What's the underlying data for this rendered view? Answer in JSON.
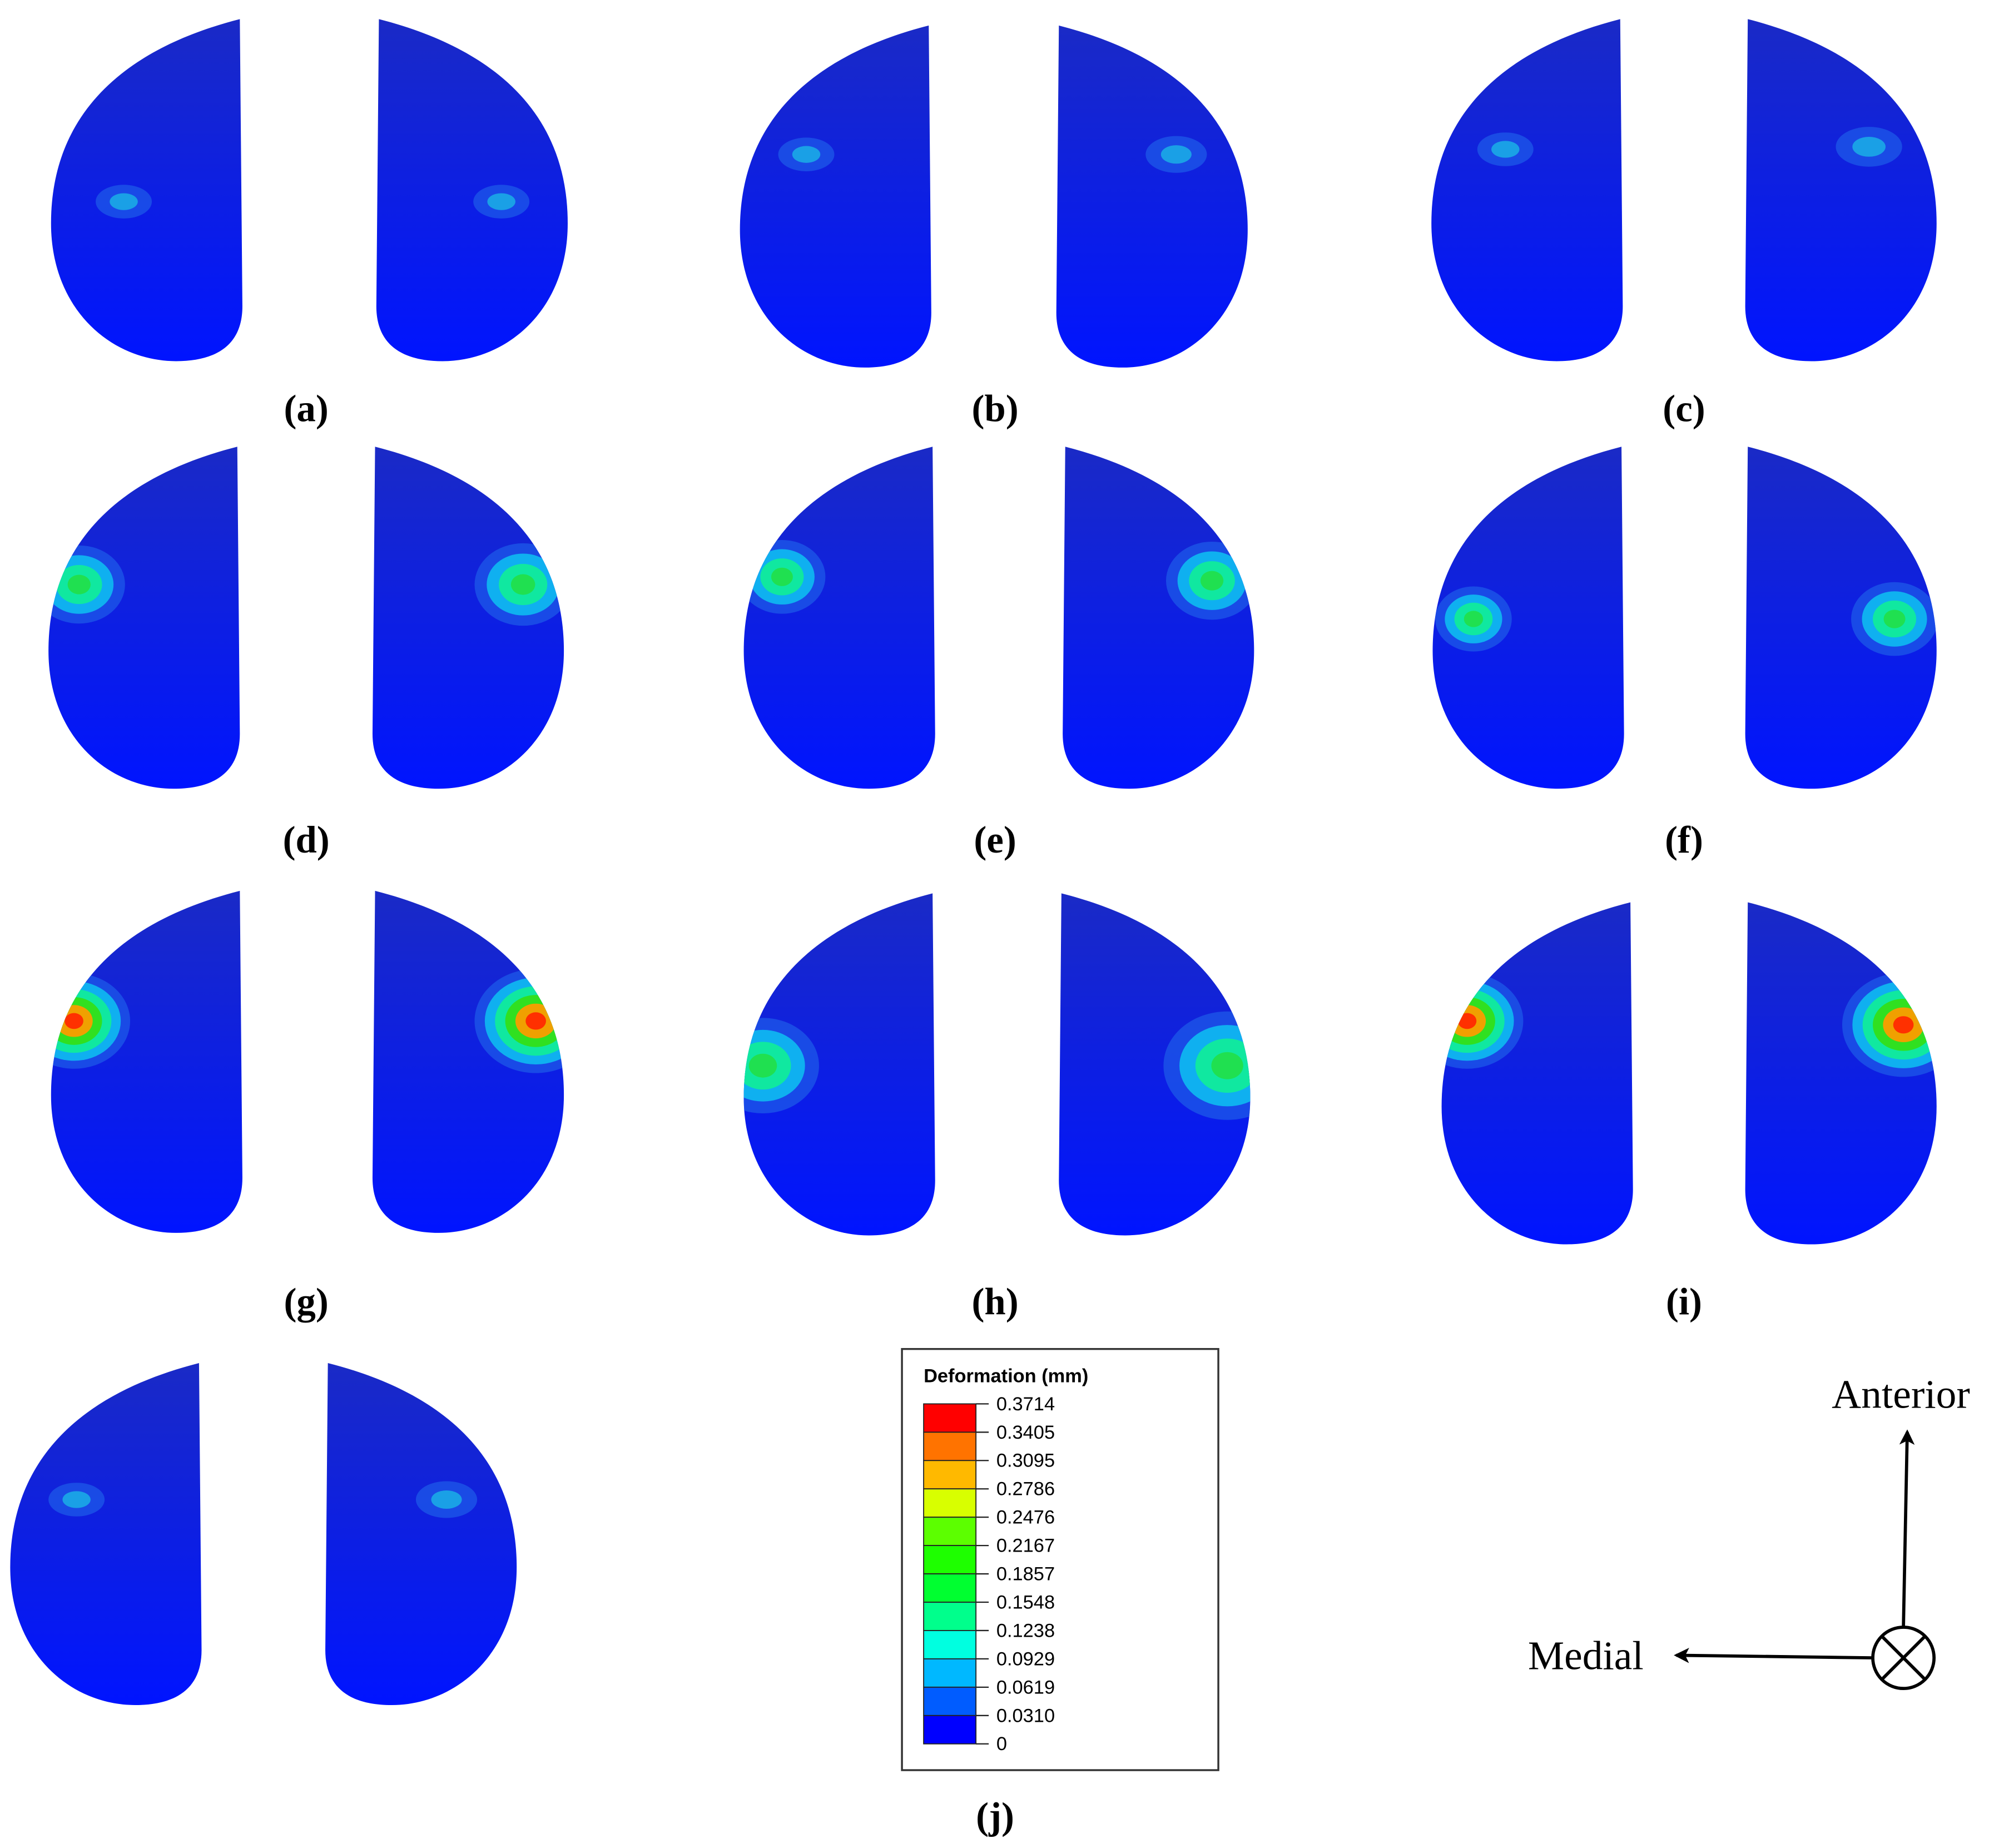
{
  "panels": [
    {
      "label": "(a)"
    },
    {
      "label": "(b)"
    },
    {
      "label": "(c)"
    },
    {
      "label": "(d)"
    },
    {
      "label": "(e)"
    },
    {
      "label": "(f)"
    },
    {
      "label": "(g)"
    },
    {
      "label": "(h)"
    },
    {
      "label": "(i)"
    },
    {
      "label": "(j)"
    }
  ],
  "legend": {
    "title": "Deformation (mm)",
    "levels": [
      "0.3714",
      "0.3405",
      "0.3095",
      "0.2786",
      "0.2476",
      "0.2167",
      "0.1857",
      "0.1548",
      "0.1238",
      "0.0929",
      "0.0619",
      "0.0310",
      "0"
    ]
  },
  "orientation": {
    "anterior": "Anterior",
    "medial": "Medial"
  }
}
